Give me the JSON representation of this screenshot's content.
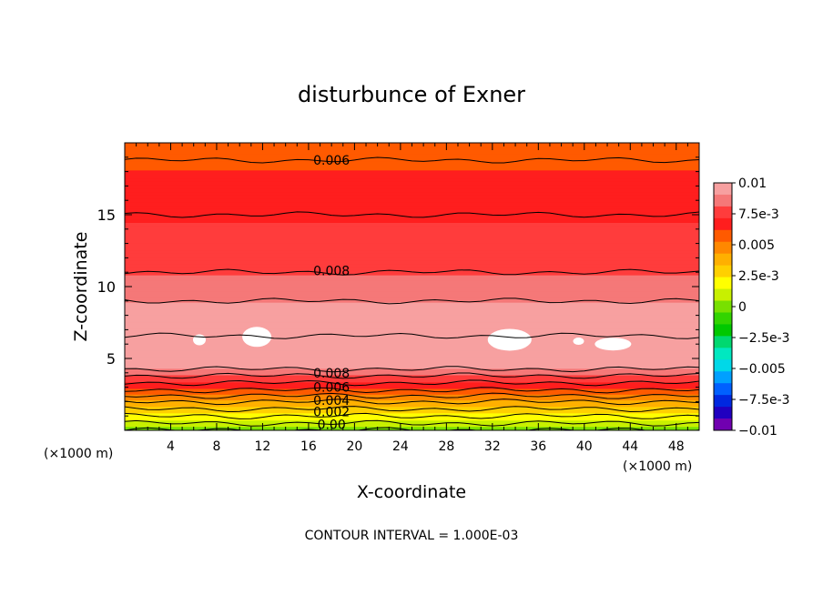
{
  "chart_data": {
    "type": "heatmap",
    "subtype": "filled-contour",
    "title": "disturbunce of Exner",
    "xlabel": "X-coordinate",
    "ylabel": "Z-coordinate",
    "x_unit_left": "(×1000 m)",
    "x_unit_right": "(×1000 m)",
    "footer": "CONTOUR INTERVAL = 1.000E-03",
    "xlim": [
      0,
      50
    ],
    "ylim": [
      0,
      20
    ],
    "x_ticks": [
      4,
      8,
      12,
      16,
      20,
      24,
      28,
      32,
      36,
      40,
      44,
      48
    ],
    "y_ticks": [
      5,
      10,
      15
    ],
    "contour_interval": 0.001,
    "colorbar": {
      "range": [
        -0.01,
        0.01
      ],
      "tick_labels": [
        "0.01",
        "7.5e-3",
        "0.005",
        "2.5e-3",
        "0",
        "−2.5e-3",
        "−0.005",
        "−7.5e-3",
        "−0.01"
      ],
      "colors": [
        "#f7a0a0",
        "#f57878",
        "#ff3c3c",
        "#ff1e1e",
        "#ff5a00",
        "#ff8800",
        "#ffb000",
        "#ffd000",
        "#ffff00",
        "#c8f000",
        "#78e000",
        "#32d400",
        "#00c800",
        "#00d870",
        "#00e8c0",
        "#00d8e8",
        "#00a0ff",
        "#0060ff",
        "#0028e0",
        "#2000c0",
        "#7000b0"
      ]
    },
    "profile_z_value": [
      {
        "z": 0.0,
        "value": 0.0
      },
      {
        "z": 1.0,
        "value": 0.002
      },
      {
        "z": 2.0,
        "value": 0.004
      },
      {
        "z": 2.8,
        "value": 0.006
      },
      {
        "z": 3.8,
        "value": 0.008
      },
      {
        "z": 4.5,
        "value": 0.0095
      },
      {
        "z": 6.0,
        "value": 0.0102
      },
      {
        "z": 8.0,
        "value": 0.0095
      },
      {
        "z": 11.0,
        "value": 0.008
      },
      {
        "z": 15.0,
        "value": 0.007
      },
      {
        "z": 18.8,
        "value": 0.006
      },
      {
        "z": 20.0,
        "value": 0.0057
      }
    ],
    "contour_labels": [
      {
        "text": "0.006",
        "x": 18,
        "z": 18.8
      },
      {
        "text": "0.008",
        "x": 18,
        "z": 11.1
      },
      {
        "text": "0.008",
        "x": 18,
        "z": 4.0
      },
      {
        "text": "0.006",
        "x": 18,
        "z": 3.0
      },
      {
        "text": "0.004",
        "x": 18,
        "z": 2.1
      },
      {
        "text": "0.002",
        "x": 18,
        "z": 1.3
      },
      {
        "text": "0.00",
        "x": 18,
        "z": 0.4
      }
    ],
    "max_regions": [
      {
        "x": 6.5,
        "z": 6.3
      },
      {
        "x": 11.5,
        "z": 6.5
      },
      {
        "x": 33.5,
        "z": 6.3
      },
      {
        "x": 39.5,
        "z": 6.2
      },
      {
        "x": 42.5,
        "z": 6.0
      }
    ]
  }
}
